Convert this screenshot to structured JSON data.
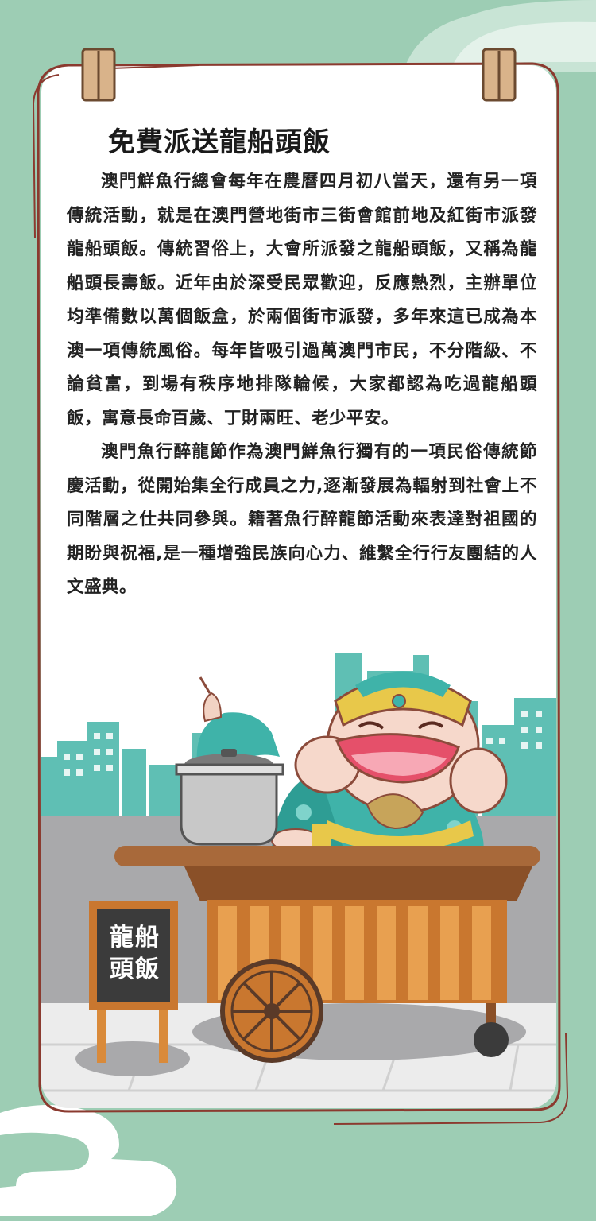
{
  "article": {
    "title": "免費派送龍船頭飯",
    "paragraph_1": "澳門鮮魚行總會每年在農曆四月初八當天，還有另一項傳統活動，就是在澳門營地街市三街會館前地及紅街市派發龍船頭飯。傳統習俗上，大會所派發之龍船頭飯，又稱為龍船頭長壽飯。近年由於深受民眾歡迎，反應熱烈，主辦單位均準備數以萬個飯盒，於兩個街市派發，多年來這已成為本澳一項傳統風俗。每年皆吸引過萬澳門市民，不分階級、不論貧富，到場有秩序地排隊輪候，大家都認為吃過龍船頭飯，寓意長命百歲、丁財兩旺、老少平安。",
    "paragraph_2": "澳門魚行醉龍節作為澳門鮮魚行獨有的一項民俗傳統節慶活動，從開始集全行成員之力,逐漸發展為輻射到社會上不同階層之仕共同參與。籍著魚行醉龍節活動來表達對祖國的期盼與祝福,是一種增強民族向心力、維繫全行行友團結的人文盛典。"
  },
  "illustration": {
    "sign_line_1": "龍船",
    "sign_line_2": "頭飯"
  },
  "colors": {
    "background": "#9dcdb4",
    "card": "#ffffff",
    "border": "#8b3a2f",
    "city": "#5fbfb4",
    "cart": "#c9772f"
  }
}
